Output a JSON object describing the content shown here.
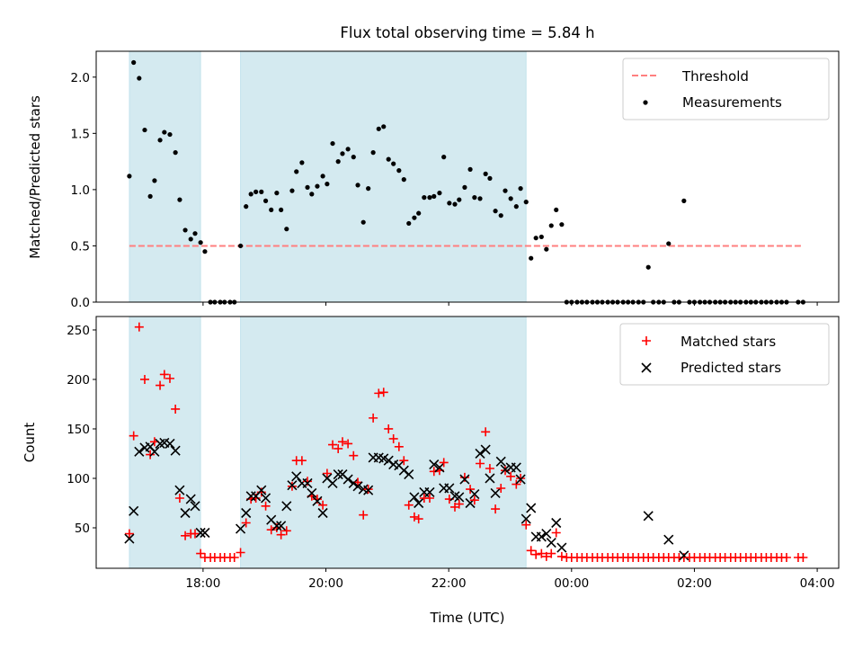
{
  "chart_data": [
    {
      "type": "scatter",
      "title": "Flux total observing time = 5.84 h",
      "xlabel": "",
      "ylabel": "Matched/Predicted stars",
      "xlim_h": [
        16.26,
        28.35
      ],
      "ylim": [
        0,
        2.23
      ],
      "yticks": [
        0.0,
        0.5,
        1.0,
        1.5,
        2.0
      ],
      "ytick_labels": [
        "0.0",
        "0.5",
        "1.0",
        "1.5",
        "2.0"
      ],
      "xticks_h": [
        18,
        20,
        22,
        24,
        26,
        28
      ],
      "shaded_intervals_h": [
        [
          16.8,
          17.96
        ],
        [
          18.61,
          23.26
        ]
      ],
      "threshold": {
        "label": "Threshold",
        "value": 0.5,
        "x_range_h": [
          16.8,
          27.77
        ],
        "color": "#ff7f7f"
      },
      "measurements_label": "Measurements",
      "legend": [
        "Threshold",
        "Measurements"
      ],
      "legend_position": "top-right"
    },
    {
      "type": "scatter",
      "title": "",
      "xlabel": "Time (UTC)",
      "ylabel": "Count",
      "xlim_h": [
        16.26,
        28.35
      ],
      "ylim": [
        9.1,
        263.6
      ],
      "yticks": [
        50,
        100,
        150,
        200,
        250
      ],
      "ytick_labels": [
        "50",
        "100",
        "150",
        "200",
        "250"
      ],
      "xticks_h": [
        18,
        20,
        22,
        24,
        26,
        28
      ],
      "xtick_labels": [
        "18:00",
        "20:00",
        "22:00",
        "00:00",
        "02:00",
        "04:00"
      ],
      "shaded_intervals_h": [
        [
          16.8,
          17.96
        ],
        [
          18.61,
          23.26
        ]
      ],
      "series": [
        {
          "name": "Matched stars",
          "marker": "plus",
          "color": "#ff0000"
        },
        {
          "name": "Predicted stars",
          "marker": "x",
          "color": "#000000"
        }
      ],
      "legend_position": "top-right"
    }
  ],
  "points": {
    "time_h": [
      16.8,
      16.87,
      16.96,
      17.05,
      17.14,
      17.21,
      17.3,
      17.37,
      17.46,
      17.55,
      17.62,
      17.71,
      17.8,
      17.87,
      17.96,
      18.03,
      18.12,
      18.19,
      18.28,
      18.35,
      18.44,
      18.51,
      18.61,
      18.7,
      18.78,
      18.86,
      18.95,
      19.02,
      19.11,
      19.2,
      19.27,
      19.36,
      19.45,
      19.52,
      19.61,
      19.7,
      19.77,
      19.86,
      19.95,
      20.02,
      20.11,
      20.2,
      20.27,
      20.36,
      20.45,
      20.52,
      20.61,
      20.69,
      20.77,
      20.86,
      20.94,
      21.02,
      21.1,
      21.19,
      21.27,
      21.35,
      21.44,
      21.51,
      21.6,
      21.69,
      21.76,
      21.85,
      21.92,
      22.01,
      22.1,
      22.17,
      22.26,
      22.35,
      22.42,
      22.51,
      22.6,
      22.67,
      22.76,
      22.85,
      22.92,
      23.01,
      23.1,
      23.17,
      23.26,
      23.34,
      23.42,
      23.51,
      23.59,
      23.67,
      23.75,
      23.84,
      23.92,
      24.0,
      24.09,
      24.17,
      24.25,
      24.34,
      24.42,
      24.5,
      24.59,
      24.67,
      24.75,
      24.84,
      24.92,
      25.0,
      25.09,
      25.17,
      25.25,
      25.33,
      25.42,
      25.5,
      25.58,
      25.67,
      25.75,
      25.83,
      25.92,
      26.0,
      26.09,
      26.17,
      26.25,
      26.34,
      26.42,
      26.5,
      26.59,
      26.67,
      26.75,
      26.84,
      26.92,
      27.0,
      27.09,
      27.17,
      27.25,
      27.34,
      27.42,
      27.5,
      27.69,
      27.77
    ],
    "ratio": [
      1.12,
      2.13,
      1.99,
      1.53,
      0.94,
      1.08,
      1.44,
      1.51,
      1.49,
      1.33,
      0.91,
      0.64,
      0.56,
      0.61,
      0.53,
      0.45,
      0,
      0,
      0,
      0,
      0,
      0,
      0.5,
      0.85,
      0.96,
      0.98,
      0.98,
      0.9,
      0.82,
      0.97,
      0.82,
      0.65,
      0.99,
      1.16,
      1.24,
      1.02,
      0.96,
      1.03,
      1.12,
      1.05,
      1.41,
      1.25,
      1.32,
      1.36,
      1.29,
      1.04,
      0.71,
      1.01,
      1.33,
      1.54,
      1.56,
      1.27,
      1.23,
      1.17,
      1.09,
      0.7,
      0.75,
      0.79,
      0.93,
      0.93,
      0.94,
      0.97,
      1.29,
      0.88,
      0.87,
      0.91,
      1.02,
      1.18,
      0.93,
      0.92,
      1.14,
      1.1,
      0.81,
      0.77,
      0.99,
      0.92,
      0.85,
      1.01,
      0.89,
      0.39,
      0.57,
      0.58,
      0.47,
      0.68,
      0.82,
      0.69,
      0,
      0,
      0,
      0,
      0,
      0,
      0,
      0,
      0,
      0,
      0,
      0,
      0,
      0,
      0,
      0,
      0.31,
      0,
      0,
      0,
      0.52,
      0,
      0,
      0.9,
      0,
      0,
      0,
      0,
      0,
      0,
      0,
      0,
      0,
      0,
      0,
      0,
      0,
      0,
      0,
      0,
      0,
      0,
      0,
      0,
      0,
      0
    ],
    "matched": [
      44,
      143,
      253,
      200,
      124,
      137,
      194,
      205,
      201,
      170,
      80,
      42,
      44,
      44,
      24,
      20,
      20,
      20,
      20,
      20,
      20,
      20,
      25,
      55,
      79,
      80,
      86,
      72,
      48,
      50,
      43,
      47,
      92,
      118,
      118,
      97,
      82,
      79,
      73,
      105,
      134,
      130,
      137,
      135,
      123,
      96,
      63,
      89,
      161,
      186,
      187,
      150,
      140,
      132,
      118,
      73,
      61,
      59,
      80,
      80,
      107,
      108,
      116,
      79,
      71,
      74,
      101,
      89,
      78,
      115,
      147,
      110,
      69,
      90,
      108,
      102,
      94,
      100,
      53,
      27,
      23,
      24,
      21,
      24,
      45,
      21,
      20,
      20,
      20,
      20,
      20,
      20,
      20,
      20,
      20,
      20,
      20,
      20,
      20,
      20,
      20,
      20,
      20,
      20,
      20,
      20,
      20,
      20,
      20,
      20,
      20,
      20,
      20,
      20,
      20,
      20,
      20,
      20,
      20,
      20,
      20,
      20,
      20,
      20,
      20,
      20,
      20,
      20,
      20,
      20,
      20,
      20
    ],
    "predicted": [
      39,
      67,
      127,
      131,
      132,
      127,
      135,
      136,
      135,
      128,
      88,
      65,
      79,
      72,
      45,
      45,
      null,
      null,
      null,
      null,
      null,
      null,
      49,
      65,
      82,
      82,
      88,
      80,
      58,
      52,
      52,
      72,
      93,
      102,
      95,
      95,
      85,
      77,
      65,
      100,
      95,
      104,
      104,
      99,
      95,
      92,
      89,
      88,
      121,
      121,
      120,
      118,
      114,
      113,
      108,
      104,
      81,
      75,
      86,
      86,
      114,
      111,
      90,
      90,
      82,
      81,
      99,
      75,
      84,
      125,
      129,
      100,
      85,
      117,
      109,
      111,
      111,
      99,
      59,
      70,
      41,
      41,
      44,
      35,
      55,
      30,
      null,
      null,
      null,
      null,
      null,
      null,
      null,
      null,
      null,
      null,
      null,
      null,
      null,
      null,
      null,
      null,
      62,
      null,
      null,
      null,
      38,
      null,
      null,
      22,
      null,
      null,
      null,
      null,
      null,
      null,
      null,
      null,
      null,
      null,
      null,
      null,
      null,
      null,
      null,
      null,
      null,
      null,
      null,
      null,
      null,
      null
    ]
  },
  "colors": {
    "shade": "#d4eaf0",
    "shade_edge": "#add8e6",
    "threshold": "#ff7f7f",
    "matched": "#ff0000",
    "predicted": "#000000"
  }
}
